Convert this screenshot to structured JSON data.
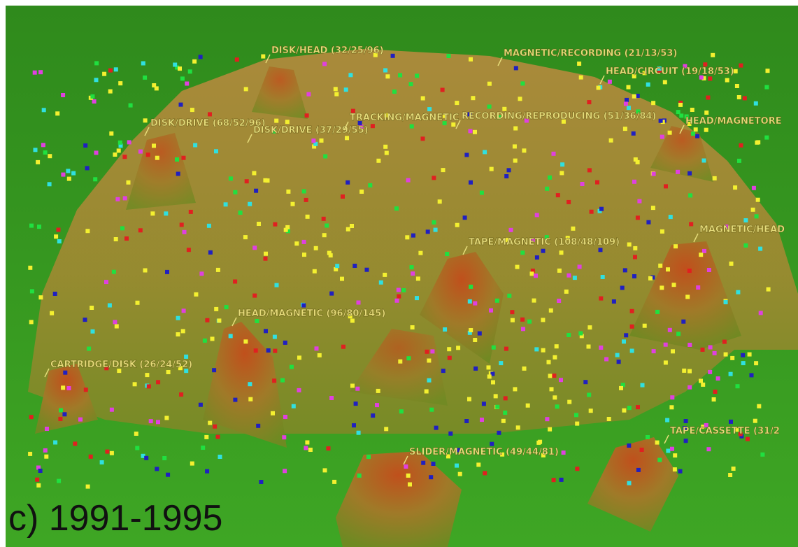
{
  "labels": [
    "DISK/HEAD (32/25/96)",
    "MAGNETIC/RECORDING (21/13/53)",
    "HEAD/CIRCUIT (19/18/53)",
    "DISK/DRIVE (68/52/96)",
    "DISK/DRIVE (37/29/55)",
    "TRACKING/MAGNETIC",
    "RECORDING/REPRODUCING (51/36/84)",
    "HEAD/MAGNETORE",
    "MAGNETIC/HEAD",
    "TAPE/MAGNETIC (108/48/109)",
    "HEAD/MAGNETIC (96/80/145)",
    "CARTRIDGE/DISK (26/24/52)",
    "SLIDER/MAGNETIC (49/44/81)",
    "TAPE/CASSETTE (31/2"
  ],
  "caption": "c) 1991-1995"
}
